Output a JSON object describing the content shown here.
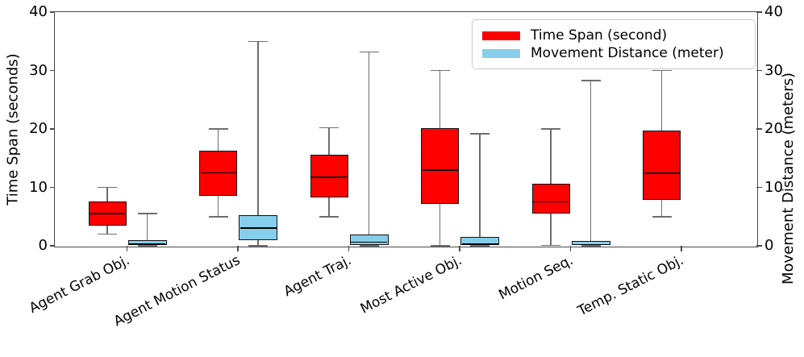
{
  "chart_data": {
    "type": "boxplot",
    "title": "",
    "categories": [
      "Agent Grab Obj.",
      "Agent Motion Status",
      "Agent Traj.",
      "Most Active Obj.",
      "Motion Seq.",
      "Temp. Static Obj."
    ],
    "ylabel_left": "Time Span (seconds)",
    "ylabel_right": "Movement Distance (meters)",
    "ylim": [
      0,
      40
    ],
    "yticks": [
      0,
      10,
      20,
      30,
      40
    ],
    "grid": false,
    "legend_position": "upper right",
    "series": [
      {
        "name": "Time Span (second)",
        "color": "#ff0000",
        "boxes": [
          {
            "whislo": 2,
            "q1": 3.5,
            "med": 5.5,
            "q3": 7.6,
            "whishi": 10
          },
          {
            "whislo": 5,
            "q1": 8.5,
            "med": 12.5,
            "q3": 16.3,
            "whishi": 20
          },
          {
            "whislo": 5,
            "q1": 8.3,
            "med": 11.7,
            "q3": 15.6,
            "whishi": 20.2
          },
          {
            "whislo": 0,
            "q1": 7.2,
            "med": 13.0,
            "q3": 20.2,
            "whishi": 30
          },
          {
            "whislo": 0.1,
            "q1": 5.5,
            "med": 7.5,
            "q3": 10.6,
            "whishi": 20
          },
          {
            "whislo": 5,
            "q1": 7.8,
            "med": 12.4,
            "q3": 19.7,
            "whishi": 30
          }
        ]
      },
      {
        "name": "Movement Distance (meter)",
        "color": "#87ceeb",
        "boxes": [
          {
            "whislo": 0,
            "q1": 0.1,
            "med": 0.3,
            "q3": 1.0,
            "whishi": 5.5
          },
          {
            "whislo": 0,
            "q1": 1.0,
            "med": 3.0,
            "q3": 5.2,
            "whishi": 35
          },
          {
            "whislo": 0,
            "q1": 0.2,
            "med": 0.6,
            "q3": 1.9,
            "whishi": 33.2
          },
          {
            "whislo": 0,
            "q1": 0.1,
            "med": 0.3,
            "q3": 1.5,
            "whishi": 19.2
          },
          {
            "whislo": 0,
            "q1": 0.1,
            "med": 0.2,
            "q3": 0.8,
            "whishi": 28.3
          },
          null
        ]
      }
    ]
  }
}
